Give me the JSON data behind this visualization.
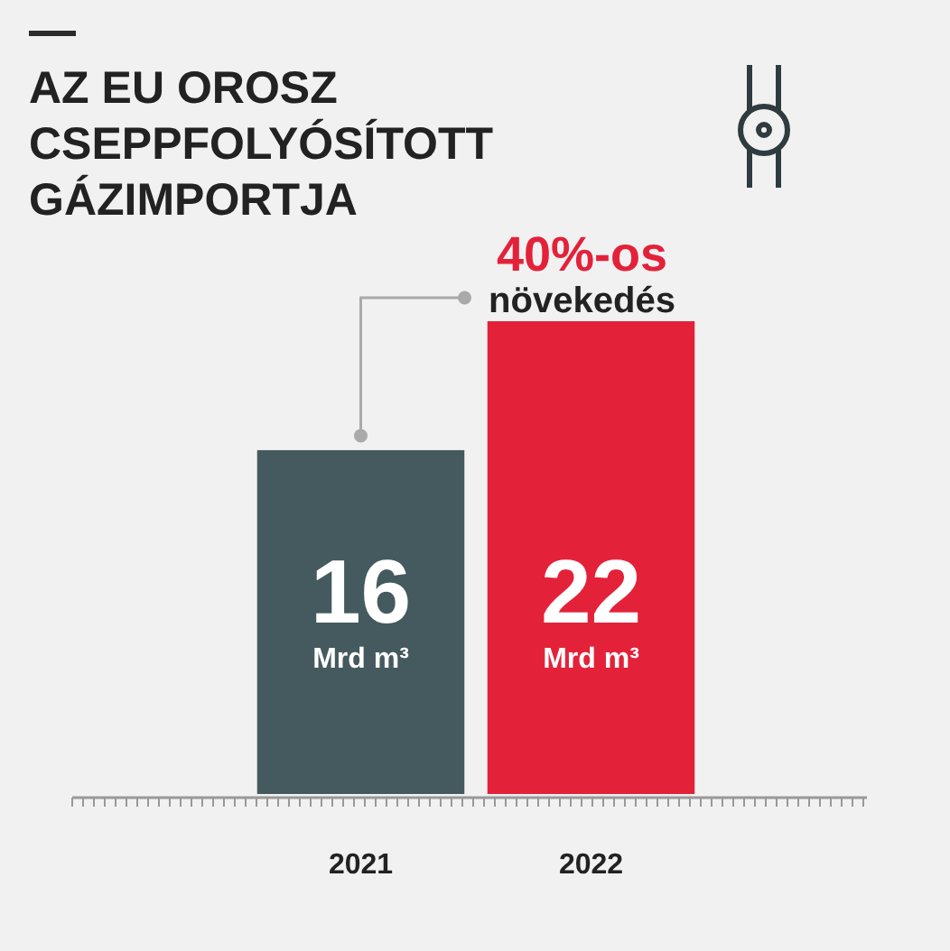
{
  "chart_data": {
    "type": "bar",
    "title": "AZ EU OROSZ CSEPPFOLYÓSÍTOTT GÁZIMPORTJA",
    "categories": [
      "2021",
      "2022"
    ],
    "values": [
      16,
      22
    ],
    "colors": [
      "#455a5e",
      "#e3223a"
    ],
    "value_labels": [
      "16 Mrd m³",
      "22 Mrd m³"
    ],
    "annotations": [
      "40%-os növekedés"
    ]
  }
}
